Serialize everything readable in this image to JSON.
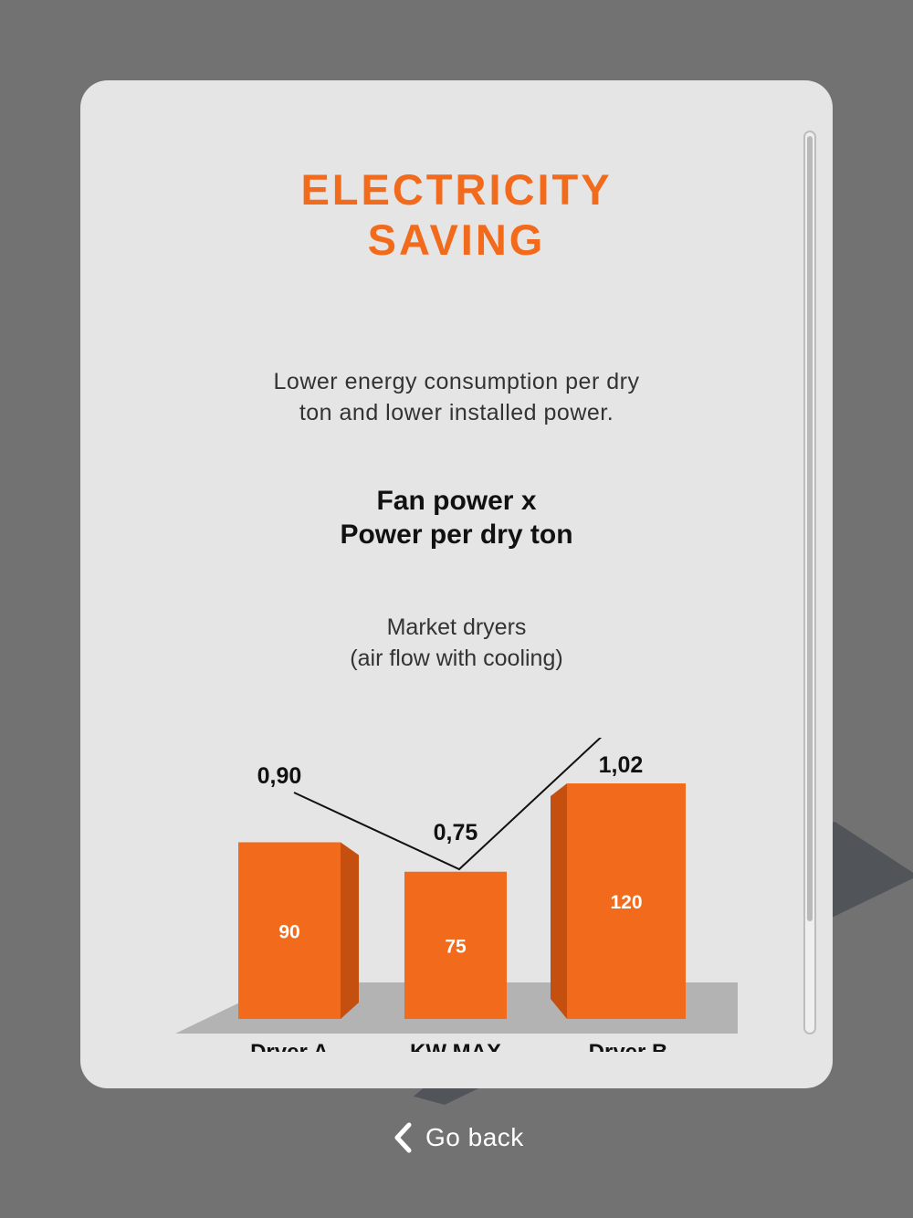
{
  "card": {
    "title_line1": "ELECTRICITY",
    "title_line2": "SAVING",
    "description_line1": "Lower energy consumption per dry",
    "description_line2": "ton and lower installed power.",
    "subtitle_line1": "Fan power x",
    "subtitle_line2": "Power per dry ton",
    "market_line1": "Market dryers",
    "market_line2": "(air flow with cooling)"
  },
  "colors": {
    "accent": "#f26a1b",
    "bar_side": "#c44f0e",
    "floor": "#b3b3b3",
    "background": "#727272",
    "card": "#e5e5e5"
  },
  "chart_data": {
    "type": "bar",
    "categories": [
      "Dryer A",
      "KW MAX",
      "Dryer B"
    ],
    "series": [
      {
        "values": [
          90,
          75,
          120
        ]
      },
      {
        "values": [
          0.9,
          0.75,
          1.02
        ]
      }
    ],
    "bar_labels": [
      "90",
      "75",
      "120"
    ],
    "line_labels": [
      "0,90",
      "0,75",
      "1,02"
    ],
    "ylim": [
      0,
      130
    ]
  },
  "footer": {
    "go_back_label": "Go back",
    "go_back_icon": "chevron-left-icon"
  }
}
